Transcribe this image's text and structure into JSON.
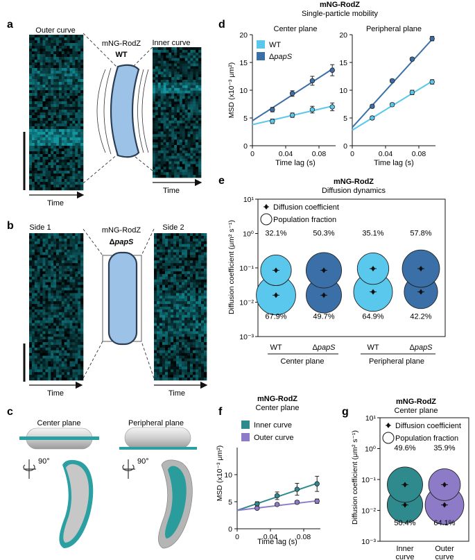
{
  "panel_labels": [
    "a",
    "b",
    "c",
    "d",
    "e",
    "f",
    "g"
  ],
  "colors": {
    "wt": "#5ac8ec",
    "paps": "#3b6fa8",
    "inner": "#2f8a8e",
    "outer": "#8e7bc8",
    "cell_fill": "#9cc2e8",
    "cell_stroke": "#2a3d52",
    "teal": "#2aa0a3"
  },
  "panel_a": {
    "left_label": "Outer curve",
    "right_label": "Inner curve",
    "center_line1": "mNG-RodZ",
    "center_line2": "WT",
    "time_label": "Time"
  },
  "panel_b": {
    "left_label": "Side 1",
    "right_label": "Side 2",
    "center_line1": "mNG-RodZ",
    "center_line2_prefix": "Δ",
    "center_line2_italic": "papS",
    "time_label": "Time"
  },
  "panel_c": {
    "left_label": "Center plane",
    "right_label": "Peripheral plane",
    "rotation_label": "90°"
  },
  "chart_data": [
    {
      "id": "d",
      "type": "line",
      "title": "mNG-RodZ",
      "subtitle": "Single-particle mobility",
      "ylabel": "MSD (x10⁻³ μm²)",
      "xlabel": "Time lag (s)",
      "legend": [
        "WT",
        "ΔpapS"
      ],
      "subplots": [
        {
          "title": "Center plane",
          "xlim": [
            0,
            0.1
          ],
          "ylim": [
            0,
            20
          ],
          "xticks": [
            "0",
            "0.04",
            "0.08"
          ],
          "yticks": [
            "0",
            "5",
            "10",
            "15",
            "20"
          ],
          "series": [
            {
              "name": "WT",
              "x": [
                0.024,
                0.048,
                0.072,
                0.096
              ],
              "y": [
                4.4,
                5.5,
                6.5,
                7.0
              ],
              "err": [
                0.4,
                0.4,
                0.6,
                0.7
              ],
              "fit": [
                3.8,
                7.2
              ]
            },
            {
              "name": "ΔpapS",
              "x": [
                0.024,
                0.048,
                0.072,
                0.096
              ],
              "y": [
                6.5,
                9.4,
                11.7,
                13.6
              ],
              "err": [
                0.4,
                0.5,
                0.8,
                1.0
              ],
              "fit": [
                4.5,
                14.0
              ]
            }
          ]
        },
        {
          "title": "Peripheral plane",
          "xlim": [
            0,
            0.1
          ],
          "ylim": [
            0,
            20
          ],
          "xticks": [
            "0",
            "0.04",
            "0.08"
          ],
          "yticks": [
            "0",
            "5",
            "10",
            "15",
            "20"
          ],
          "series": [
            {
              "name": "WT",
              "x": [
                0.024,
                0.048,
                0.072,
                0.096
              ],
              "y": [
                5.0,
                7.4,
                9.6,
                11.5
              ],
              "err": [
                0.3,
                0.3,
                0.4,
                0.4
              ],
              "fit": [
                2.8,
                11.8
              ]
            },
            {
              "name": "ΔpapS",
              "x": [
                0.024,
                0.048,
                0.072,
                0.096
              ],
              "y": [
                7.1,
                11.7,
                15.6,
                19.3
              ],
              "err": [
                0.3,
                0.3,
                0.3,
                0.4
              ],
              "fit": [
                3.3,
                19.5
              ]
            }
          ]
        }
      ]
    },
    {
      "id": "e",
      "type": "scatter",
      "title": "mNG-RodZ",
      "subtitle": "Diffusion dynamics",
      "ylabel": "Diffusion coefficient (μm² s⁻¹)",
      "yscale": "log",
      "ylim": [
        0.001,
        10
      ],
      "yticks": [
        "10⁻³",
        "10⁻²",
        "10⁻¹",
        "10⁰",
        "10¹"
      ],
      "legend": [
        "Diffusion coefficient",
        "Population fraction"
      ],
      "categories": [
        "WT",
        "ΔpapS",
        "WT",
        "ΔpapS"
      ],
      "groups": [
        "Center plane",
        "Peripheral plane"
      ],
      "points": [
        {
          "strain": "WT",
          "plane": "Center plane",
          "fast_D": 0.085,
          "slow_D": 0.016,
          "fast_fraction": "32.1%",
          "slow_fraction": "67.9%"
        },
        {
          "strain": "ΔpapS",
          "plane": "Center plane",
          "fast_D": 0.085,
          "slow_D": 0.016,
          "fast_fraction": "50.3%",
          "slow_fraction": "49.7%"
        },
        {
          "strain": "WT",
          "plane": "Peripheral plane",
          "fast_D": 0.095,
          "slow_D": 0.02,
          "fast_fraction": "35.1%",
          "slow_fraction": "64.9%"
        },
        {
          "strain": "ΔpapS",
          "plane": "Peripheral plane",
          "fast_D": 0.095,
          "slow_D": 0.02,
          "fast_fraction": "57.8%",
          "slow_fraction": "42.2%"
        }
      ]
    },
    {
      "id": "f",
      "type": "line",
      "title": "mNG-RodZ",
      "subtitle": "Center plane",
      "ylabel": "MSD (x10⁻³ μm²)",
      "xlabel": "Time lag (s)",
      "xlim": [
        0,
        0.1
      ],
      "ylim": [
        0,
        15
      ],
      "xticks": [
        "0",
        "0.04",
        "0.08"
      ],
      "yticks": [
        "0",
        "5",
        "10"
      ],
      "legend": [
        "Inner curve",
        "Outer curve"
      ],
      "series": [
        {
          "name": "Inner curve",
          "x": [
            0.024,
            0.048,
            0.072,
            0.096
          ],
          "y": [
            4.6,
            6.1,
            7.3,
            8.3
          ],
          "err": [
            0.4,
            0.7,
            1.1,
            1.4
          ],
          "fit": [
            3.4,
            8.5
          ]
        },
        {
          "name": "Outer curve",
          "x": [
            0.024,
            0.048,
            0.072,
            0.096
          ],
          "y": [
            3.8,
            4.5,
            4.9,
            5.1
          ],
          "err": [
            0.2,
            0.2,
            0.3,
            0.4
          ],
          "fit": [
            3.4,
            5.2
          ]
        }
      ]
    },
    {
      "id": "g",
      "type": "scatter",
      "title": "mNG-RodZ",
      "subtitle": "Center plane",
      "ylabel": "Diffusion coefficient (μm² s⁻¹)",
      "yscale": "log",
      "ylim": [
        0.001,
        10
      ],
      "yticks": [
        "10⁻³",
        "10⁻²",
        "10⁻¹",
        "10⁰",
        "10¹"
      ],
      "legend": [
        "Diffusion coefficient",
        "Population fraction"
      ],
      "categories": [
        "Inner curve",
        "Outer curve"
      ],
      "points": [
        {
          "name": "Inner curve",
          "fast_D": 0.068,
          "slow_D": 0.015,
          "fast_fraction": "49.6%",
          "slow_fraction": "50.4%"
        },
        {
          "name": "Outer curve",
          "fast_D": 0.068,
          "slow_D": 0.015,
          "fast_fraction": "35.9%",
          "slow_fraction": "64.1%"
        }
      ]
    }
  ]
}
